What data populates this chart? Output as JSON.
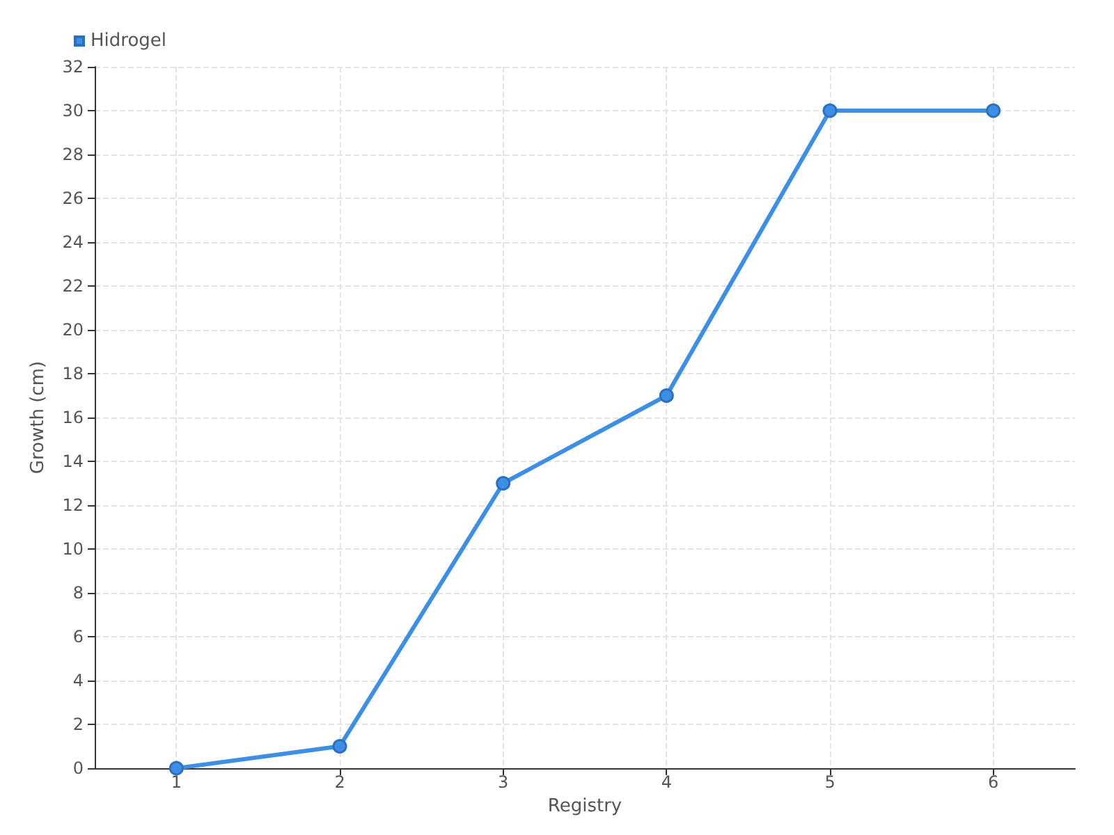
{
  "chart_data": {
    "type": "line",
    "xlabel": "Registry",
    "ylabel": "Growth (cm)",
    "x": [
      1,
      2,
      3,
      4,
      5,
      6
    ],
    "series": [
      {
        "name": "Hidrogel",
        "color": "#3d8fe6",
        "values": [
          0,
          1,
          13,
          17,
          30,
          30
        ]
      }
    ],
    "xlim": [
      0.5,
      6.5
    ],
    "xticks": [
      1,
      2,
      3,
      4,
      5,
      6
    ],
    "ylim": [
      0,
      32
    ],
    "yticks": [
      0,
      2,
      4,
      6,
      8,
      10,
      12,
      14,
      16,
      18,
      20,
      22,
      24,
      26,
      28,
      30,
      32
    ],
    "grid": true,
    "legend": "top left",
    "marker": "circle",
    "line_style": "solid"
  }
}
